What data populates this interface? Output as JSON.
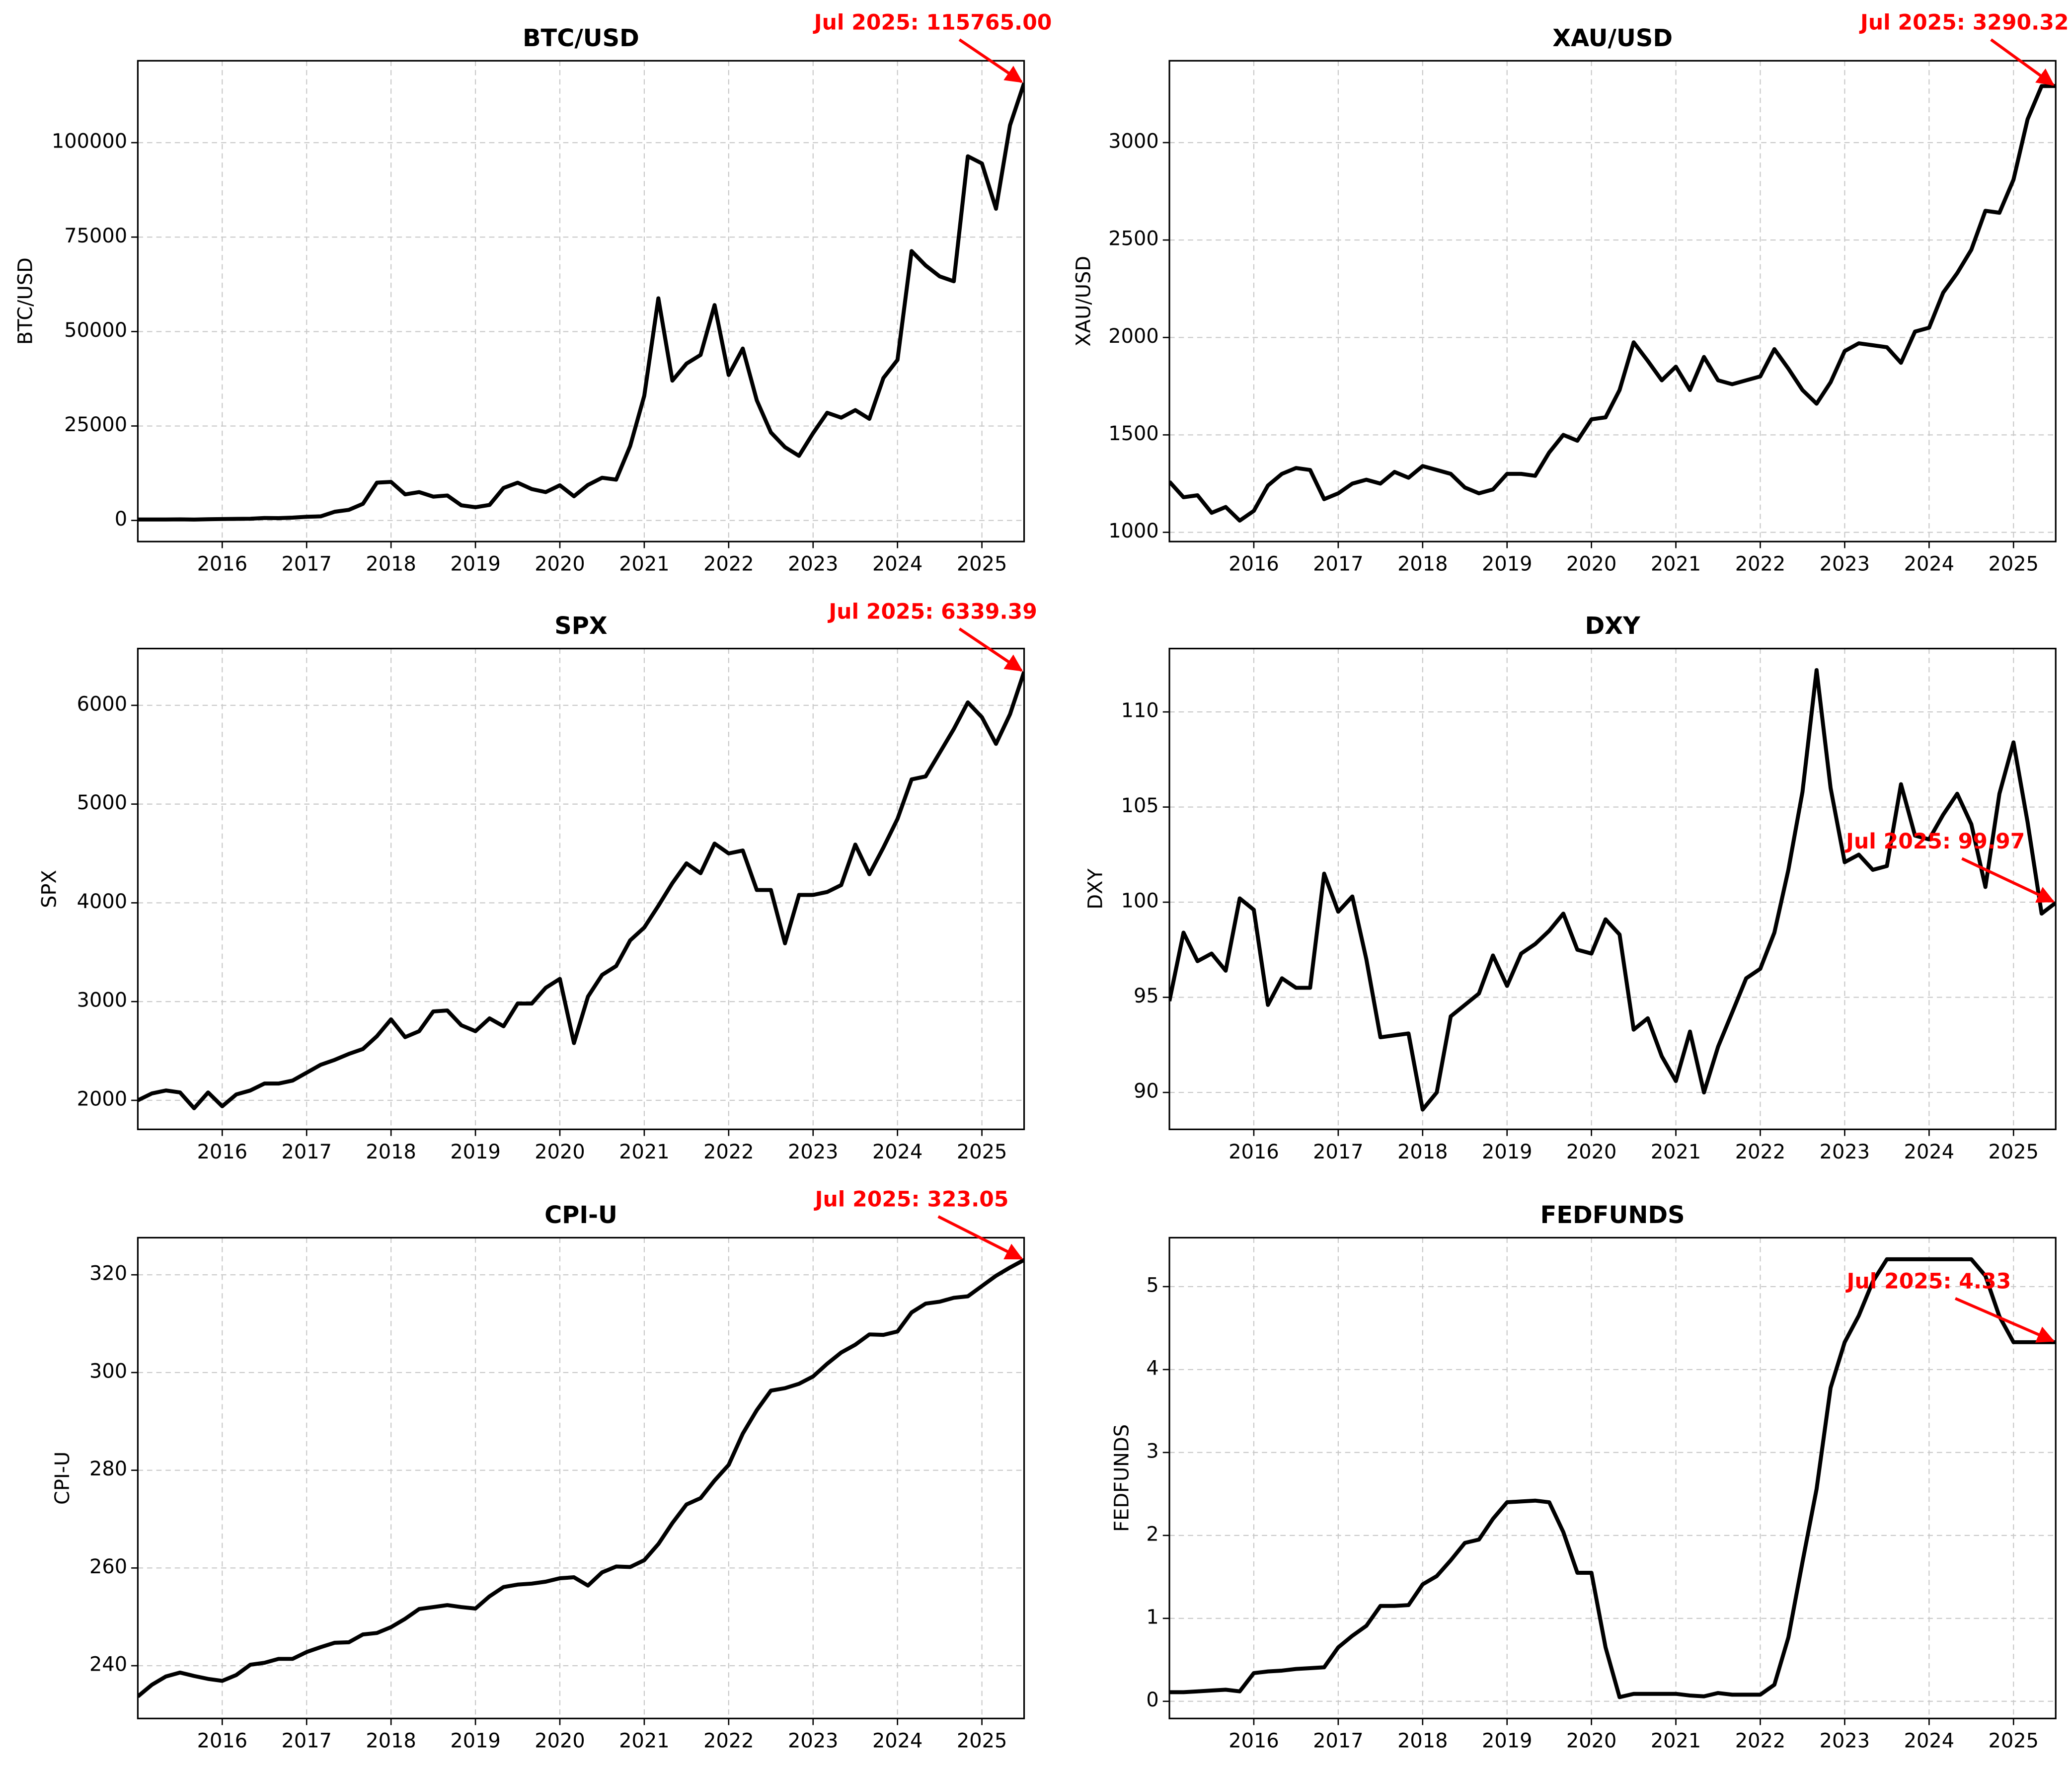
{
  "chart_data": [
    {
      "type": "line",
      "title": "BTC/USD",
      "ylabel": "BTC/USD",
      "annotation": "Jul 2025: 115765.00",
      "color": "#000000",
      "grid": true,
      "x": [
        2015,
        2015.167,
        2015.333,
        2015.5,
        2015.667,
        2015.833,
        2016,
        2016.167,
        2016.333,
        2016.5,
        2016.667,
        2016.833,
        2017,
        2017.167,
        2017.333,
        2017.5,
        2017.667,
        2017.833,
        2018,
        2018.167,
        2018.333,
        2018.5,
        2018.667,
        2018.833,
        2019,
        2019.167,
        2019.333,
        2019.5,
        2019.667,
        2019.833,
        2020,
        2020.167,
        2020.333,
        2020.5,
        2020.667,
        2020.833,
        2021,
        2021.167,
        2021.333,
        2021.5,
        2021.667,
        2021.833,
        2022,
        2022.167,
        2022.333,
        2022.5,
        2022.667,
        2022.833,
        2023,
        2023.167,
        2023.333,
        2023.5,
        2023.667,
        2023.833,
        2024,
        2024.167,
        2024.333,
        2024.5,
        2024.667,
        2024.833,
        2025,
        2025.167,
        2025.333,
        2025.5
      ],
      "values": [
        250,
        250,
        240,
        280,
        230,
        320,
        370,
        410,
        450,
        650,
        610,
        740,
        970,
        1080,
        2300,
        2800,
        4400,
        10000,
        10200,
        6900,
        7500,
        6300,
        6600,
        4000,
        3500,
        4100,
        8600,
        10000,
        8300,
        7500,
        9300,
        6400,
        9400,
        11300,
        10800,
        19700,
        33000,
        58800,
        37000,
        41500,
        43800,
        57000,
        38500,
        45500,
        31800,
        23300,
        19400,
        17100,
        23100,
        28500,
        27200,
        29200,
        26900,
        37700,
        42500,
        71300,
        67500,
        64600,
        63300,
        96400,
        94500,
        82500,
        104600,
        115765
      ],
      "xlim": [
        2015,
        2025.5
      ],
      "xticks": [
        2016,
        2017,
        2018,
        2019,
        2020,
        2021,
        2022,
        2023,
        2024,
        2025
      ],
      "ylim": [
        -5594,
        121678
      ],
      "yticks": [
        0,
        25000,
        50000,
        75000,
        100000
      ]
    },
    {
      "type": "line",
      "title": "XAU/USD",
      "ylabel": "XAU/USD",
      "annotation": "Jul 2025: 3290.32",
      "color": "#000000",
      "grid": true,
      "x": [
        2015,
        2015.167,
        2015.333,
        2015.5,
        2015.667,
        2015.833,
        2016,
        2016.167,
        2016.333,
        2016.5,
        2016.667,
        2016.833,
        2017,
        2017.167,
        2017.333,
        2017.5,
        2017.667,
        2017.833,
        2018,
        2018.167,
        2018.333,
        2018.5,
        2018.667,
        2018.833,
        2019,
        2019.167,
        2019.333,
        2019.5,
        2019.667,
        2019.833,
        2020,
        2020.167,
        2020.333,
        2020.5,
        2020.667,
        2020.833,
        2021,
        2021.167,
        2021.333,
        2021.5,
        2021.667,
        2021.833,
        2022,
        2022.167,
        2022.333,
        2022.5,
        2022.667,
        2022.833,
        2023,
        2023.167,
        2023.333,
        2023.5,
        2023.667,
        2023.833,
        2024,
        2024.167,
        2024.333,
        2024.5,
        2024.667,
        2024.833,
        2025,
        2025.167,
        2025.333,
        2025.5
      ],
      "values": [
        1260,
        1180,
        1190,
        1100,
        1130,
        1060,
        1110,
        1240,
        1300,
        1330,
        1320,
        1170,
        1200,
        1250,
        1270,
        1250,
        1310,
        1280,
        1340,
        1320,
        1300,
        1230,
        1200,
        1220,
        1300,
        1300,
        1290,
        1410,
        1500,
        1470,
        1580,
        1590,
        1730,
        1975,
        1880,
        1780,
        1850,
        1730,
        1900,
        1780,
        1760,
        1780,
        1800,
        1940,
        1840,
        1730,
        1660,
        1770,
        1930,
        1970,
        1960,
        1950,
        1870,
        2030,
        2050,
        2230,
        2330,
        2450,
        2650,
        2640,
        2810,
        3120,
        3290,
        3290.32
      ],
      "xlim": [
        2015,
        2025.5
      ],
      "xticks": [
        2016,
        2017,
        2018,
        2019,
        2020,
        2021,
        2022,
        2023,
        2024,
        2025
      ],
      "ylim": [
        952.5,
        3420
      ],
      "yticks": [
        1000,
        1500,
        2000,
        2500,
        3000
      ]
    },
    {
      "type": "line",
      "title": "SPX",
      "ylabel": "SPX",
      "annotation": "Jul 2025: 6339.39",
      "color": "#000000",
      "grid": true,
      "x": [
        2015,
        2015.167,
        2015.333,
        2015.5,
        2015.667,
        2015.833,
        2016,
        2016.167,
        2016.333,
        2016.5,
        2016.667,
        2016.833,
        2017,
        2017.167,
        2017.333,
        2017.5,
        2017.667,
        2017.833,
        2018,
        2018.167,
        2018.333,
        2018.5,
        2018.667,
        2018.833,
        2019,
        2019.167,
        2019.333,
        2019.5,
        2019.667,
        2019.833,
        2020,
        2020.167,
        2020.333,
        2020.5,
        2020.667,
        2020.833,
        2021,
        2021.167,
        2021.333,
        2021.5,
        2021.667,
        2021.833,
        2022,
        2022.167,
        2022.333,
        2022.5,
        2022.667,
        2022.833,
        2023,
        2023.167,
        2023.333,
        2023.5,
        2023.667,
        2023.833,
        2024,
        2024.167,
        2024.333,
        2024.5,
        2024.667,
        2024.833,
        2025,
        2025.167,
        2025.333,
        2025.5
      ],
      "values": [
        2000,
        2070,
        2100,
        2080,
        1920,
        2080,
        1940,
        2060,
        2100,
        2170,
        2170,
        2200,
        2280,
        2360,
        2410,
        2470,
        2520,
        2650,
        2820,
        2640,
        2700,
        2900,
        2910,
        2760,
        2700,
        2830,
        2750,
        2980,
        2980,
        3140,
        3230,
        2580,
        3050,
        3270,
        3360,
        3620,
        3750,
        3970,
        4200,
        4400,
        4300,
        4600,
        4500,
        4530,
        4130,
        4130,
        3590,
        4080,
        4080,
        4110,
        4180,
        4590,
        4290,
        4560,
        4850,
        5250,
        5280,
        5520,
        5760,
        6030,
        5880,
        5610,
        5910,
        6339.39
      ],
      "xlim": [
        2015,
        2025.5
      ],
      "xticks": [
        2016,
        2017,
        2018,
        2019,
        2020,
        2021,
        2022,
        2023,
        2024,
        2025
      ],
      "ylim": [
        1706,
        6575
      ],
      "yticks": [
        2000,
        3000,
        4000,
        5000,
        6000
      ]
    },
    {
      "type": "line",
      "title": "DXY",
      "ylabel": "DXY",
      "annotation": "Jul 2025: 99.97",
      "color": "#000000",
      "grid": true,
      "x": [
        2015,
        2015.167,
        2015.333,
        2015.5,
        2015.667,
        2015.833,
        2016,
        2016.167,
        2016.333,
        2016.5,
        2016.667,
        2016.833,
        2017,
        2017.167,
        2017.333,
        2017.5,
        2017.667,
        2017.833,
        2018,
        2018.167,
        2018.333,
        2018.5,
        2018.667,
        2018.833,
        2019,
        2019.167,
        2019.333,
        2019.5,
        2019.667,
        2019.833,
        2020,
        2020.167,
        2020.333,
        2020.5,
        2020.667,
        2020.833,
        2021,
        2021.167,
        2021.333,
        2021.5,
        2021.667,
        2021.833,
        2022,
        2022.167,
        2022.333,
        2022.5,
        2022.667,
        2022.833,
        2023,
        2023.167,
        2023.333,
        2023.5,
        2023.667,
        2023.833,
        2024,
        2024.167,
        2024.333,
        2024.5,
        2024.667,
        2024.833,
        2025,
        2025.167,
        2025.333,
        2025.5
      ],
      "values": [
        94.8,
        98.4,
        96.9,
        97.3,
        96.4,
        100.2,
        99.6,
        94.6,
        96.0,
        95.5,
        95.5,
        101.5,
        99.5,
        100.3,
        97.0,
        92.9,
        93.0,
        93.1,
        89.1,
        90.0,
        94.0,
        94.6,
        95.2,
        97.2,
        95.6,
        97.3,
        97.8,
        98.5,
        99.4,
        97.5,
        97.3,
        99.1,
        98.3,
        93.3,
        93.9,
        91.9,
        90.6,
        93.2,
        90.0,
        92.4,
        94.2,
        96.0,
        96.5,
        98.4,
        101.7,
        105.8,
        112.2,
        106.0,
        102.1,
        102.5,
        101.7,
        101.9,
        106.2,
        103.5,
        103.3,
        104.6,
        105.7,
        104.1,
        100.8,
        105.7,
        108.4,
        104.2,
        99.4,
        99.97
      ],
      "xlim": [
        2015,
        2025.5
      ],
      "xticks": [
        2016,
        2017,
        2018,
        2019,
        2020,
        2021,
        2022,
        2023,
        2024,
        2025
      ],
      "ylim": [
        88.06,
        113.33
      ],
      "yticks": [
        90,
        95,
        100,
        105,
        110
      ]
    },
    {
      "type": "line",
      "title": "CPI-U",
      "ylabel": "CPI-U",
      "annotation": "Jul 2025: 323.05",
      "color": "#000000",
      "grid": true,
      "x": [
        2015,
        2015.167,
        2015.333,
        2015.5,
        2015.667,
        2015.833,
        2016,
        2016.167,
        2016.333,
        2016.5,
        2016.667,
        2016.833,
        2017,
        2017.167,
        2017.333,
        2017.5,
        2017.667,
        2017.833,
        2018,
        2018.167,
        2018.333,
        2018.5,
        2018.667,
        2018.833,
        2019,
        2019.167,
        2019.333,
        2019.5,
        2019.667,
        2019.833,
        2020,
        2020.167,
        2020.333,
        2020.5,
        2020.667,
        2020.833,
        2021,
        2021.167,
        2021.333,
        2021.5,
        2021.667,
        2021.833,
        2022,
        2022.167,
        2022.333,
        2022.5,
        2022.667,
        2022.833,
        2023,
        2023.167,
        2023.333,
        2023.5,
        2023.667,
        2023.833,
        2024,
        2024.167,
        2024.333,
        2024.5,
        2024.667,
        2024.833,
        2025,
        2025.167,
        2025.333,
        2025.5
      ],
      "values": [
        233.7,
        236.1,
        237.8,
        238.6,
        237.9,
        237.3,
        236.9,
        238.1,
        240.2,
        240.6,
        241.4,
        241.4,
        242.8,
        243.8,
        244.7,
        244.8,
        246.4,
        246.7,
        247.9,
        249.6,
        251.6,
        252.0,
        252.4,
        252.0,
        251.7,
        254.2,
        256.1,
        256.6,
        256.8,
        257.2,
        257.9,
        258.1,
        256.4,
        259.1,
        260.3,
        260.2,
        261.6,
        264.9,
        269.2,
        273.0,
        274.3,
        277.9,
        281.1,
        287.5,
        292.3,
        296.3,
        296.8,
        297.7,
        299.2,
        301.8,
        304.1,
        305.7,
        307.8,
        307.7,
        308.4,
        312.3,
        314.1,
        314.5,
        315.3,
        315.6,
        317.7,
        319.8,
        321.5,
        323.05
      ],
      "xlim": [
        2015,
        2025.5
      ],
      "xticks": [
        2016,
        2017,
        2018,
        2019,
        2020,
        2021,
        2022,
        2023,
        2024,
        2025
      ],
      "ylim": [
        229.2,
        327.6
      ],
      "yticks": [
        240,
        260,
        280,
        300,
        320
      ]
    },
    {
      "type": "line",
      "title": "FEDFUNDS",
      "ylabel": "FEDFUNDS",
      "annotation": "Jul 2025: 4.33",
      "color": "#000000",
      "grid": true,
      "x": [
        2015,
        2015.167,
        2015.333,
        2015.5,
        2015.667,
        2015.833,
        2016,
        2016.167,
        2016.333,
        2016.5,
        2016.667,
        2016.833,
        2017,
        2017.167,
        2017.333,
        2017.5,
        2017.667,
        2017.833,
        2018,
        2018.167,
        2018.333,
        2018.5,
        2018.667,
        2018.833,
        2019,
        2019.167,
        2019.333,
        2019.5,
        2019.667,
        2019.833,
        2020,
        2020.167,
        2020.333,
        2020.5,
        2020.667,
        2020.833,
        2021,
        2021.167,
        2021.333,
        2021.5,
        2021.667,
        2021.833,
        2022,
        2022.167,
        2022.333,
        2022.5,
        2022.667,
        2022.833,
        2023,
        2023.167,
        2023.333,
        2023.5,
        2023.667,
        2023.833,
        2024,
        2024.167,
        2024.333,
        2024.5,
        2024.667,
        2024.833,
        2025,
        2025.167,
        2025.333,
        2025.5
      ],
      "values": [
        0.11,
        0.11,
        0.12,
        0.13,
        0.14,
        0.12,
        0.34,
        0.36,
        0.37,
        0.39,
        0.4,
        0.41,
        0.65,
        0.79,
        0.91,
        1.15,
        1.15,
        1.16,
        1.41,
        1.51,
        1.7,
        1.91,
        1.95,
        2.2,
        2.4,
        2.41,
        2.42,
        2.4,
        2.04,
        1.55,
        1.55,
        0.65,
        0.05,
        0.09,
        0.09,
        0.09,
        0.09,
        0.07,
        0.06,
        0.1,
        0.08,
        0.08,
        0.08,
        0.2,
        0.77,
        1.68,
        2.56,
        3.78,
        4.33,
        4.65,
        5.06,
        5.33,
        5.33,
        5.33,
        5.33,
        5.33,
        5.33,
        5.33,
        5.13,
        4.64,
        4.33,
        4.33,
        4.33,
        4.33
      ],
      "xlim": [
        2015,
        2025.5
      ],
      "xticks": [
        2016,
        2017,
        2018,
        2019,
        2020,
        2021,
        2022,
        2023,
        2024,
        2025
      ],
      "ylim": [
        -0.207,
        5.59
      ],
      "yticks": [
        0,
        1,
        2,
        3,
        4,
        5
      ]
    }
  ]
}
